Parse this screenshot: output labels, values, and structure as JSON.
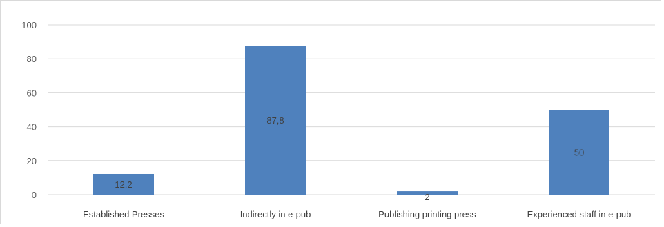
{
  "chart_data": {
    "type": "bar",
    "title": "",
    "xlabel": "",
    "ylabel": "",
    "categories": [
      "Established Presses",
      "Indirectly in e-pub",
      "Publishing printing press",
      "Experienced staff in e-pub"
    ],
    "values": [
      12.2,
      87.8,
      2,
      50
    ],
    "data_labels": [
      "12,2",
      "87,8",
      "2",
      "50"
    ],
    "ylim": [
      0,
      100
    ],
    "y_ticks": [
      0,
      20,
      40,
      60,
      80,
      100
    ],
    "grid": true,
    "legend": "none",
    "bar_color": "#4f81bd",
    "grid_color": "#d9d9d9"
  }
}
